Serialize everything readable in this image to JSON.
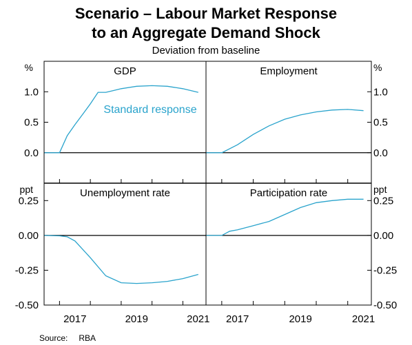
{
  "title_line1": "Scenario – Labour Market Response",
  "title_line2": "to an Aggregate Demand Shock",
  "subtitle": "Deviation from baseline",
  "source_label": "Source:",
  "source_value": "RBA",
  "colors": {
    "series": "#29a3cc",
    "axis": "#000000",
    "zero_line": "#000000"
  },
  "chart_data": [
    {
      "type": "line",
      "title": "GDP",
      "unit": "%",
      "ylim": [
        -0.5,
        1.5
      ],
      "yticks": [
        "1.0",
        "0.5",
        "0.0"
      ],
      "ytick_values": [
        1.0,
        0.5,
        0.0
      ],
      "xlim": [
        2016.5,
        2021.75
      ],
      "xticks": [
        "2017",
        "2019",
        "2021"
      ],
      "annotation": "Standard response",
      "series": [
        {
          "x": [
            2016.5,
            2017.0,
            2017.25,
            2017.5,
            2017.75,
            2018.0,
            2018.25,
            2018.5,
            2018.75,
            2019.0,
            2019.5,
            2020.0,
            2020.5,
            2021.0,
            2021.5
          ],
          "y": [
            0.0,
            0.0,
            0.28,
            0.46,
            0.63,
            0.8,
            0.99,
            0.99,
            1.02,
            1.05,
            1.09,
            1.1,
            1.09,
            1.05,
            0.99
          ]
        }
      ]
    },
    {
      "type": "line",
      "title": "Employment",
      "unit": "%",
      "ylim": [
        -0.5,
        1.5
      ],
      "yticks": [
        "1.0",
        "0.5",
        "0.0"
      ],
      "ytick_values": [
        1.0,
        0.5,
        0.0
      ],
      "xlim": [
        2016.5,
        2021.75
      ],
      "xticks": [
        "2017",
        "2019",
        "2021"
      ],
      "series": [
        {
          "x": [
            2016.5,
            2017.0,
            2017.5,
            2018.0,
            2018.5,
            2019.0,
            2019.5,
            2020.0,
            2020.5,
            2021.0,
            2021.5
          ],
          "y": [
            0.0,
            0.0,
            0.13,
            0.3,
            0.44,
            0.55,
            0.62,
            0.67,
            0.7,
            0.71,
            0.69
          ]
        }
      ]
    },
    {
      "type": "line",
      "title": "Unemployment rate",
      "unit": "ppt",
      "ylim": [
        -0.5,
        0.375
      ],
      "yticks": [
        "0.25",
        "0.00",
        "-0.25",
        "-0.50"
      ],
      "ytick_values": [
        0.25,
        0.0,
        -0.25,
        -0.5
      ],
      "xlim": [
        2016.5,
        2021.75
      ],
      "xticks": [
        "2017",
        "2019",
        "2021"
      ],
      "series": [
        {
          "x": [
            2016.5,
            2017.0,
            2017.25,
            2017.5,
            2018.0,
            2018.5,
            2019.0,
            2019.5,
            2020.0,
            2020.5,
            2021.0,
            2021.5
          ],
          "y": [
            0.0,
            -0.003,
            -0.01,
            -0.04,
            -0.16,
            -0.29,
            -0.34,
            -0.345,
            -0.34,
            -0.33,
            -0.31,
            -0.28
          ]
        }
      ]
    },
    {
      "type": "line",
      "title": "Participation rate",
      "unit": "ppt",
      "ylim": [
        -0.5,
        0.375
      ],
      "yticks": [
        "0.25",
        "0.00",
        "-0.25",
        "-0.50"
      ],
      "ytick_values": [
        0.25,
        0.0,
        -0.25,
        -0.5
      ],
      "xlim": [
        2016.5,
        2021.75
      ],
      "xticks": [
        "2017",
        "2019",
        "2021"
      ],
      "series": [
        {
          "x": [
            2016.5,
            2017.0,
            2017.25,
            2017.5,
            2018.0,
            2018.5,
            2019.0,
            2019.5,
            2020.0,
            2020.5,
            2021.0,
            2021.5
          ],
          "y": [
            0.0,
            0.0,
            0.03,
            0.04,
            0.07,
            0.1,
            0.15,
            0.2,
            0.235,
            0.25,
            0.26,
            0.26
          ]
        }
      ]
    }
  ]
}
